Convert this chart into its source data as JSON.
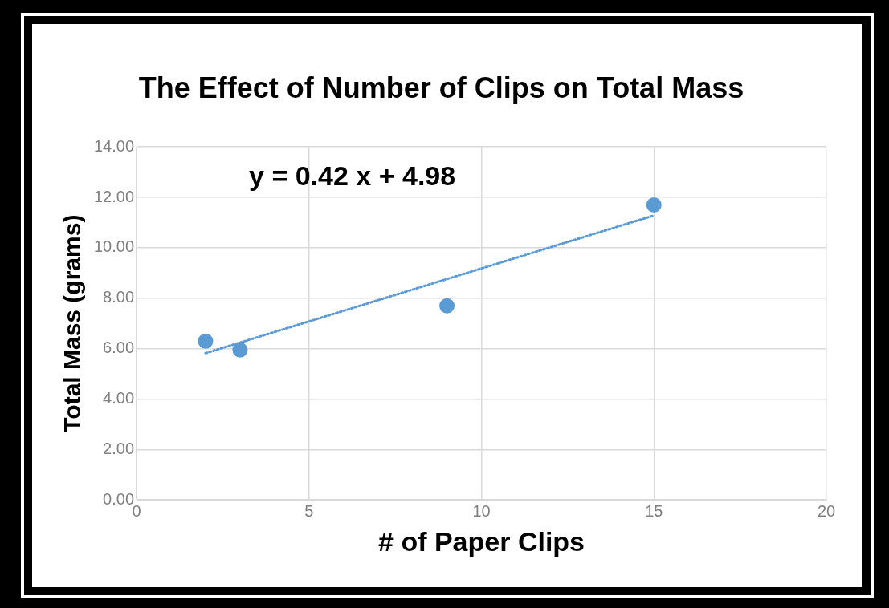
{
  "chart_data": {
    "type": "scatter",
    "title": "The Effect of Number of Clips on Total Mass",
    "xlabel": "# of Paper Clips",
    "ylabel": "Total Mass (grams)",
    "xlim": [
      0,
      20
    ],
    "xticks": [
      0,
      5,
      10,
      15,
      20
    ],
    "ylim": [
      0,
      14
    ],
    "yticks": [
      {
        "value": 0,
        "label": "0.00"
      },
      {
        "value": 2,
        "label": "2.00"
      },
      {
        "value": 4,
        "label": "4.00"
      },
      {
        "value": 6,
        "label": "6.00"
      },
      {
        "value": 8,
        "label": "8.00"
      },
      {
        "value": 10,
        "label": "10.00"
      },
      {
        "value": 12,
        "label": "12.00"
      },
      {
        "value": 14,
        "label": "14.00"
      }
    ],
    "grid": true,
    "legend": false,
    "annotations": [
      "y = 0.42 x + 4.98"
    ],
    "series": [
      {
        "color": "#5b9bd5",
        "marker": "circle",
        "x": [
          2,
          3,
          9,
          15
        ],
        "values": [
          6.3,
          5.95,
          7.7,
          11.7
        ]
      },
      {
        "type": "line",
        "color": "#5b9bd5",
        "marker": "none",
        "line_style": "dotted",
        "x": [
          2,
          15
        ],
        "values": [
          5.82,
          11.28
        ]
      }
    ]
  }
}
